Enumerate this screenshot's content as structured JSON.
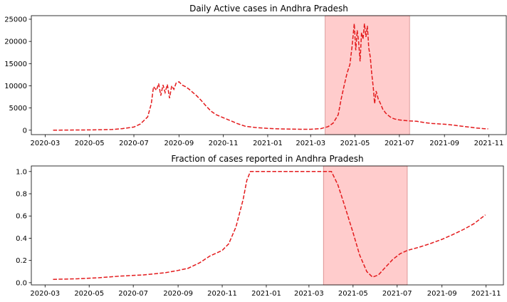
{
  "chart_data": [
    {
      "type": "line",
      "title": "Daily Active cases in Andhra Pradesh",
      "xlabel": "",
      "ylabel": "",
      "x_ticks": [
        "2020-03",
        "2020-05",
        "2020-07",
        "2020-09",
        "2020-11",
        "2021-01",
        "2021-03",
        "2021-05",
        "2021-07",
        "2021-09",
        "2021-11"
      ],
      "y_ticks": [
        "0",
        "5000",
        "10000",
        "15000",
        "20000",
        "25000"
      ],
      "ylim": [
        -1000,
        25800
      ],
      "xlim": [
        "2020-02-11",
        "2021-11-25"
      ],
      "grid": false,
      "line_color": "#e31a1c",
      "line_style": "dashed",
      "highlight_span": {
        "start": "2021-03-21",
        "end": "2021-07-15",
        "color": "#ffcccc"
      },
      "series": [
        {
          "x": [
            "2020-03-12",
            "2020-04-01",
            "2020-05-01",
            "2020-06-01",
            "2020-06-15",
            "2020-07-01",
            "2020-07-10",
            "2020-07-20",
            "2020-07-25",
            "2020-07-28",
            "2020-08-01",
            "2020-08-04",
            "2020-08-07",
            "2020-08-10",
            "2020-08-13",
            "2020-08-16",
            "2020-08-19",
            "2020-08-22",
            "2020-08-25",
            "2020-08-28",
            "2020-09-01",
            "2020-09-05",
            "2020-09-10",
            "2020-09-15",
            "2020-09-20",
            "2020-09-25",
            "2020-10-01",
            "2020-10-08",
            "2020-10-15",
            "2020-10-22",
            "2020-11-01",
            "2020-11-10",
            "2020-11-20",
            "2020-12-01",
            "2020-12-15",
            "2021-01-01",
            "2021-01-15",
            "2021-02-01",
            "2021-02-15",
            "2021-03-01",
            "2021-03-15",
            "2021-03-25",
            "2021-04-01",
            "2021-04-08",
            "2021-04-12",
            "2021-04-16",
            "2021-04-20",
            "2021-04-24",
            "2021-04-27",
            "2021-04-30",
            "2021-05-02",
            "2021-05-04",
            "2021-05-06",
            "2021-05-08",
            "2021-05-10",
            "2021-05-12",
            "2021-05-14",
            "2021-05-16",
            "2021-05-18",
            "2021-05-20",
            "2021-05-22",
            "2021-05-24",
            "2021-05-26",
            "2021-05-28",
            "2021-05-30",
            "2021-06-02",
            "2021-06-05",
            "2021-06-08",
            "2021-06-12",
            "2021-06-16",
            "2021-06-20",
            "2021-06-25",
            "2021-07-01",
            "2021-07-08",
            "2021-07-15",
            "2021-07-25",
            "2021-08-05",
            "2021-08-15",
            "2021-08-25",
            "2021-09-05",
            "2021-09-15",
            "2021-09-25",
            "2021-10-05",
            "2021-10-15",
            "2021-10-25",
            "2021-10-31"
          ],
          "y": [
            0,
            20,
            60,
            150,
            350,
            700,
            1400,
            3000,
            6000,
            9800,
            9000,
            10500,
            7800,
            10200,
            8500,
            10300,
            7200,
            10000,
            9200,
            10600,
            10900,
            10200,
            9800,
            9200,
            8500,
            7800,
            6800,
            5500,
            4300,
            3500,
            2800,
            2200,
            1500,
            900,
            600,
            400,
            300,
            250,
            200,
            200,
            350,
            800,
            1600,
            3500,
            7000,
            10000,
            12800,
            14800,
            19000,
            24000,
            18000,
            22500,
            20000,
            15500,
            22000,
            20500,
            24000,
            21000,
            23500,
            18500,
            16500,
            12800,
            9800,
            6000,
            8800,
            7000,
            6000,
            4800,
            3900,
            3300,
            2800,
            2500,
            2300,
            2200,
            2100,
            2000,
            1700,
            1500,
            1400,
            1300,
            1100,
            900,
            700,
            500,
            350,
            300
          ]
        }
      ]
    },
    {
      "type": "line",
      "title": "Fraction of cases reported in Andhra Pradesh",
      "xlabel": "",
      "ylabel": "",
      "x_ticks": [
        "2020-03",
        "2020-05",
        "2020-07",
        "2020-09",
        "2020-11",
        "2021-01",
        "2021-03",
        "2021-05",
        "2021-07",
        "2021-09",
        "2021-11"
      ],
      "y_ticks": [
        "0.0",
        "0.2",
        "0.4",
        "0.6",
        "0.8",
        "1.0"
      ],
      "ylim": [
        -0.02,
        1.05
      ],
      "xlim": [
        "2020-02-11",
        "2021-11-25"
      ],
      "grid": false,
      "line_color": "#e31a1c",
      "line_style": "dashed",
      "highlight_span": {
        "start": "2021-03-21",
        "end": "2021-07-15",
        "color": "#ffcccc"
      },
      "series": [
        {
          "x": [
            "2020-03-12",
            "2020-04-15",
            "2020-05-15",
            "2020-06-15",
            "2020-07-15",
            "2020-08-15",
            "2020-09-01",
            "2020-09-15",
            "2020-10-01",
            "2020-10-15",
            "2020-11-01",
            "2020-11-10",
            "2020-11-20",
            "2020-11-30",
            "2020-12-05",
            "2020-12-10",
            "2021-01-01",
            "2021-02-01",
            "2021-03-01",
            "2021-04-01",
            "2021-04-10",
            "2021-04-20",
            "2021-05-01",
            "2021-05-10",
            "2021-05-20",
            "2021-05-28",
            "2021-06-05",
            "2021-06-15",
            "2021-06-25",
            "2021-07-05",
            "2021-07-15",
            "2021-08-01",
            "2021-08-15",
            "2021-09-01",
            "2021-09-15",
            "2021-10-01",
            "2021-10-15",
            "2021-10-31"
          ],
          "y": [
            0.03,
            0.035,
            0.045,
            0.06,
            0.07,
            0.09,
            0.11,
            0.13,
            0.18,
            0.24,
            0.29,
            0.35,
            0.5,
            0.75,
            0.92,
            1.0,
            1.0,
            1.0,
            1.0,
            1.0,
            0.88,
            0.68,
            0.45,
            0.25,
            0.1,
            0.05,
            0.07,
            0.14,
            0.21,
            0.26,
            0.29,
            0.32,
            0.35,
            0.39,
            0.43,
            0.48,
            0.53,
            0.61
          ]
        }
      ]
    }
  ]
}
